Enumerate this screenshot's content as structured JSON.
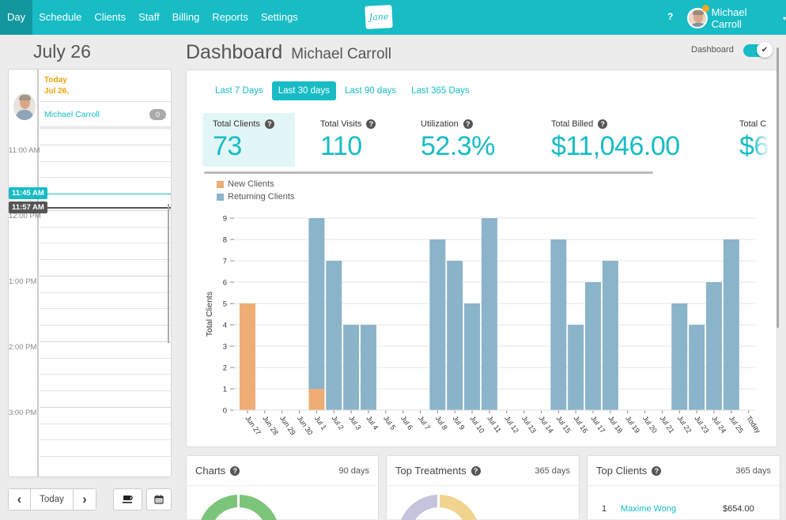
{
  "topbar": {
    "nav": [
      "Day",
      "Schedule",
      "Clients",
      "Staff",
      "Billing",
      "Reports",
      "Settings"
    ],
    "active_nav": "Day",
    "logo_text": "Jane",
    "help_label": "?",
    "user_name": "Michael Carroll",
    "caret": "▾"
  },
  "calendar": {
    "date_title": "July 26",
    "today_label": "Today",
    "today_date": "Jul 26,",
    "staff_name": "Michael Carroll",
    "staff_count": "0",
    "time_labels": [
      "11:00 AM",
      "12:00 PM",
      "1:00 PM",
      "2:00 PM",
      "3:00 PM"
    ],
    "now_pill": "11:45 AM",
    "current_pill": "11:57 AM",
    "buttons": {
      "prev": "‹",
      "today": "Today",
      "next": "›"
    }
  },
  "dashboard": {
    "title": "Dashboard",
    "subtitle": "Michael Carroll",
    "toggle_label": "Dashboard",
    "toggle_on": true,
    "tabs": [
      "Last 7 Days",
      "Last 30 days",
      "Last 90 days",
      "Last 365 Days"
    ],
    "active_tab": "Last 30 days",
    "stats": [
      {
        "label": "Total Clients",
        "value": "73"
      },
      {
        "label": "Total Visits",
        "value": "110"
      },
      {
        "label": "Utilization",
        "value": "52.3%"
      },
      {
        "label": "Total Billed",
        "value": "$11,046.00"
      },
      {
        "label": "Total C",
        "value": "$6"
      }
    ]
  },
  "chart_data": {
    "type": "bar",
    "stacked": true,
    "ylabel": "Total Clients",
    "xlabel": "",
    "ylim": [
      0,
      9
    ],
    "yticks": [
      0,
      1,
      2,
      3,
      4,
      5,
      6,
      7,
      8,
      9
    ],
    "grid": true,
    "legend_position": "top-left",
    "categories": [
      "Jun 27",
      "Jun 28",
      "Jun 29",
      "Jun 30",
      "Jul 1",
      "Jul 2",
      "Jul 3",
      "Jul 4",
      "Jul 5",
      "Jul 6",
      "Jul 7",
      "Jul 8",
      "Jul 9",
      "Jul 10",
      "Jul 11",
      "Jul 12",
      "Jul 13",
      "Jul 14",
      "Jul 15",
      "Jul 16",
      "Jul 17",
      "Jul 18",
      "Jul 19",
      "Jul 20",
      "Jul 21",
      "Jul 22",
      "Jul 23",
      "Jul 24",
      "Jul 25",
      "Today"
    ],
    "series": [
      {
        "name": "New Clients",
        "color": "#eead74",
        "values": [
          5,
          0,
          0,
          0,
          1,
          0,
          0,
          0,
          0,
          0,
          0,
          0,
          0,
          0,
          0,
          0,
          0,
          0,
          0,
          0,
          0,
          0,
          0,
          0,
          0,
          0,
          0,
          0,
          0,
          0
        ]
      },
      {
        "name": "Returning Clients",
        "color": "#8ab4c9",
        "values": [
          0,
          0,
          0,
          0,
          8,
          7,
          4,
          4,
          0,
          0,
          0,
          8,
          7,
          5,
          9,
          0,
          0,
          0,
          8,
          4,
          6,
          7,
          0,
          0,
          0,
          5,
          4,
          6,
          8,
          0
        ]
      }
    ]
  },
  "cards": [
    {
      "title": "Charts",
      "meta": "90 days"
    },
    {
      "title": "Top Treatments",
      "meta": "365 days"
    },
    {
      "title": "Top Clients",
      "meta": "365 days",
      "rows": [
        {
          "rank": "1",
          "name": "Maxime Wong",
          "amount": "$654.00"
        }
      ]
    }
  ],
  "colors": {
    "brand": "#17bcc5",
    "brand_dark": "#12979f",
    "today_orange": "#f0a30a",
    "new_clients": "#eead74",
    "returning_clients": "#8ab4c9"
  }
}
